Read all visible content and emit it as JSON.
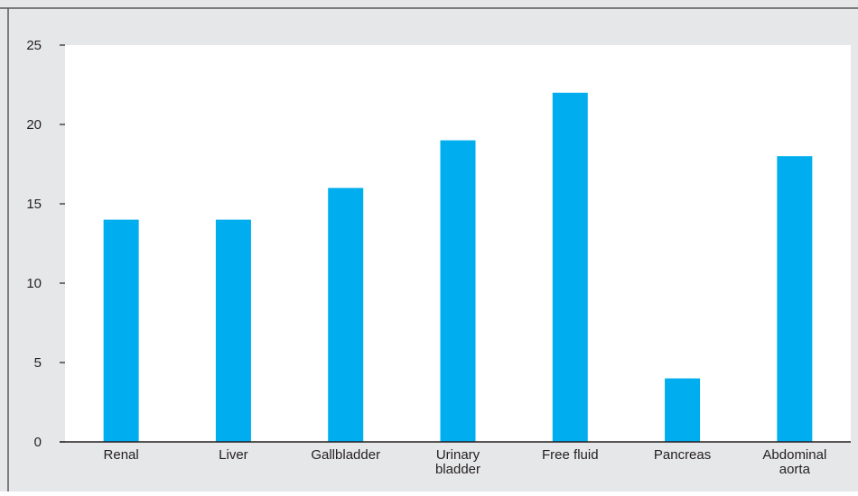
{
  "chart_data": {
    "type": "bar",
    "title": "",
    "xlabel": "",
    "ylabel": "",
    "categories": [
      [
        "Renal"
      ],
      [
        "Liver"
      ],
      [
        "Gallbladder"
      ],
      [
        "Urinary",
        "bladder"
      ],
      [
        "Free fluid"
      ],
      [
        "Pancreas"
      ],
      [
        "Abdominal",
        "aorta"
      ]
    ],
    "values": [
      14,
      14,
      16,
      19,
      22,
      4,
      18
    ],
    "ylim": [
      0,
      25
    ],
    "yticks": [
      0,
      5,
      10,
      15,
      20,
      25
    ],
    "grid": false,
    "legend": "none",
    "colors": {
      "bar": "#00aeef",
      "panel_background": "#e6e7e8",
      "plot_background": "#ffffff",
      "axis": "#231f20",
      "frame": "#58595b"
    }
  }
}
